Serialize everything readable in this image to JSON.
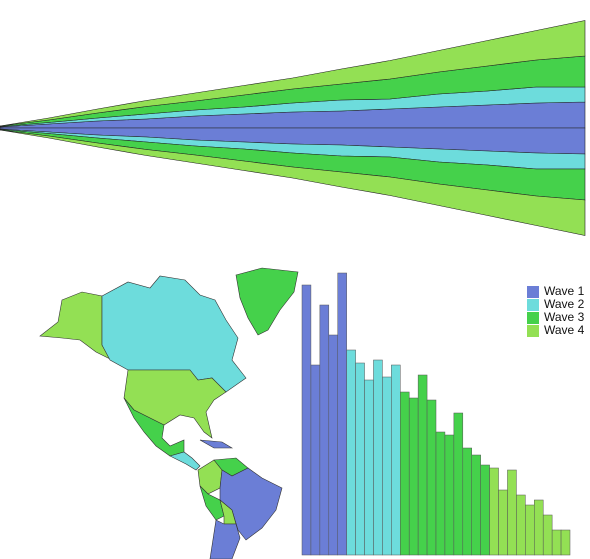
{
  "chart_data": [
    {
      "type": "streamgraph",
      "series": [
        {
          "color": "#6b7ed6",
          "values": [
            2,
            8,
            14,
            18,
            24,
            28,
            32,
            34,
            38,
            42,
            46,
            50,
            52
          ]
        },
        {
          "color": "#6ddcdc",
          "values": [
            1,
            3,
            6,
            10,
            12,
            14,
            18,
            22,
            20,
            26,
            28,
            32,
            30
          ]
        },
        {
          "color": "#45d14b",
          "values": [
            1,
            5,
            10,
            15,
            18,
            24,
            28,
            32,
            40,
            44,
            50,
            54,
            62
          ]
        },
        {
          "color": "#93e054",
          "values": [
            0,
            4,
            8,
            12,
            16,
            19,
            22,
            30,
            37,
            43,
            51,
            59,
            71
          ]
        }
      ]
    },
    {
      "type": "bar",
      "legend": "top-right",
      "series": [
        {
          "name": "Wave 1",
          "color": "#6b7ed6",
          "values": [
            270,
            190,
            250,
            220,
            282
          ]
        },
        {
          "name": "Wave 2",
          "color": "#6ddcdc",
          "values": [
            205,
            192,
            175,
            195,
            178,
            190
          ]
        },
        {
          "name": "Wave 3",
          "color": "#45d14b",
          "values": [
            163,
            157,
            180,
            155,
            123,
            120,
            142,
            107,
            100,
            90
          ]
        },
        {
          "name": "Wave 4",
          "color": "#93e054",
          "values": [
            87,
            65,
            85,
            60,
            50,
            55,
            40,
            25,
            25
          ]
        }
      ]
    }
  ]
}
